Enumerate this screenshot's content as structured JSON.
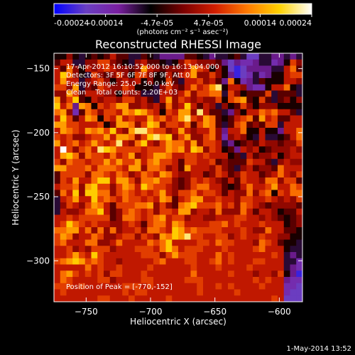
{
  "figure": {
    "title": "Reconstructed RHESSI Image",
    "footer_timestamp": "1-May-2014 13:52"
  },
  "colorbar": {
    "colormap": "flux",
    "colormap_stops": [
      "#0000ff",
      "#6a3fc2",
      "#7a1fa0",
      "#000000",
      "#7a0000",
      "#d21e00",
      "#ff7a00",
      "#ffd200",
      "#ffffff"
    ],
    "tick_labels": [
      "-0.00024",
      "-0.00014",
      "-4.7e-05",
      "4.7e-05",
      "0.00014",
      "0.00024"
    ],
    "unit_label": "(photons cm⁻² s⁻¹ asec⁻²)",
    "range": [
      -0.00024,
      0.00024
    ]
  },
  "info": {
    "time_range": "17-Apr-2012 16:10:52.000 to 16:13:04.000",
    "detectors": "Detectors: 3F 5F 6F 7F 8F 9F, Att 0",
    "energy_range": "Energy Range: 25.0 - 50.0 keV",
    "clean_counts": "Clean    Total counts: 2.20E+03",
    "peak_position": "Position of Peak = [-770,-152]"
  },
  "chart_data": {
    "type": "heatmap",
    "title": "Reconstructed RHESSI Image",
    "xlabel": "Heliocentric X (arcsec)",
    "ylabel": "Heliocentric Y (arcsec)",
    "xlim": [
      -775,
      -582
    ],
    "ylim": [
      -332,
      -138
    ],
    "x_ticks": [
      -750,
      -700,
      -650,
      -600
    ],
    "y_ticks": [
      -150,
      -200,
      -250,
      -300
    ],
    "x_tick_labels": [
      "−750",
      "−700",
      "−650",
      "−600"
    ],
    "y_tick_labels": [
      "−150",
      "−200",
      "−250",
      "−300"
    ],
    "value_range": [
      -0.00024,
      0.00024
    ],
    "grid": false,
    "rows_top_to_bottom": [
      "6686567679775576544447765455675225544545",
      "7995588AA876589776568A9888742433455346A",
      "97B86989A98878C9878889CA96862124444559B7",
      "9DB865A878A86AA866979AC88A864123534669AA",
      "9C99589A8689896866A7599A8974B63457666998",
      "AA8C587A988A966658A879B9ACE6998433699B65",
      "88CA79998869885559989B8AABB5A86777A57775",
      "C8AD7698998AA89759C8A98988A6ABC76A75786",
      "D9B4CB6A9ACC889897B89D97985867A868886666",
      "BC837BA8AA9CBDCA96A9CC8E977548699BAB9975",
      "9DA79CB6A9C9A99CAB9ACEA9CB7679AB7C9A7799",
      "CCAA999A68CCB8ADC8AA9B7ACB757AB787AA5999",
      "9CBA9CBCAD98CEEBAA89C9899B8499B66966499B",
      "A9A889AAC9CCB8ADECD8AC88AB8389865955679B",
      "C9AB9ACA9AE98BD98ACBB9C8AA9546787988788A",
      "9FA8AB9EDCAAAA9AAACBC9DC8A96749896788898",
      "9CDB8BAA9B9AC89ACCB99AA9A999675978896899",
      "A8BAA9AACACAAC9BCAA97AA99A78777A99758988",
      "CCAAAB9BBBA9CC8BBA897C9998A875897887B999",
      "7AAAA8BBA9BA89BA9CB9889978A978A99789B98A",
      "7A9C99BDD9CCA8BBCAA878A9A98797A998BB8AA7",
      "9AAB8CDAA8ACB9DBAA9878ABB997679B99AC99BA",
      "7B9D8DDBB8ABA9A9AC98AAB9AA97988B8AB6A9BB",
      "59AC99DABA9BAA9A9CB79ACC99A998AA99A9898A",
      "58A98ACB97AAABBC8A87BCDAAAB9A8BA98788887",
      "59889BBD978ABA9A8AA9CC8998B888B979986779",
      "99A9AAAAA78BBA9ABC9AA89988999AA998987678",
      "9ADBA9A99889A97ABB9CB9999AAB9A999A999678",
      "BBCC9B8B8B899A8BBA9DCABAAAA999A988B99776",
      "ACB899BA889AA8A98CBDCEAA99AA89A99A998866",
      "AB999BB889B9999BABD9999AA9BAA9998BA97665",
      "99A898AAA8999AAA9BDB9AAA999A9999AB999655",
      "99ACA9DA999999AAA8ACAAA999B9A999999A9545",
      "ABCDCABA99899999AB999AA99AB9A999AA999553",
      "99999B9A99A9999A999999A999A9999A99999543",
      "9BCA9A9A8AA999A9999999B99999A9998998A641",
      "9BA9999AA89999AA99999AAA99999999A9A99433",
      "AAA9A999999AAA9A9999999A99A9A9999A999332",
      "9A999999999A9AA99999999A99999A9999999322",
      "9999999AA999A99999A9999999999999999A9222"
    ]
  }
}
